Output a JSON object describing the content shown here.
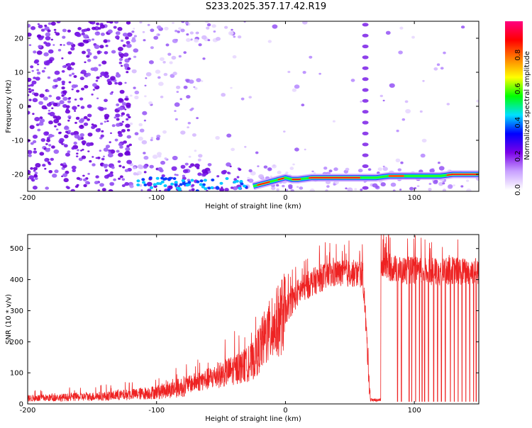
{
  "title": "S233.2025.357.17.42.R19",
  "colors": {
    "snr_line": "#ee2222",
    "spectrogram_low": "#7a00e8",
    "spectrogram_track": "#ff0000"
  },
  "chart_data": [
    {
      "type": "heatmap",
      "xlabel": "Height of straight line (km)",
      "ylabel": "Frequency (Hz)",
      "xlim": [
        -200,
        150
      ],
      "ylim": [
        -25,
        25
      ],
      "xticks": [
        "-200",
        "-100",
        "0",
        "100"
      ],
      "yticks": [
        "-20",
        "-10",
        "0",
        "10",
        "20"
      ],
      "colorbar": {
        "label": "Normalized spectral amplitude",
        "range": [
          0,
          1
        ],
        "ticks": [
          "0.0",
          "0.2",
          "0.4",
          "0.6",
          "0.8"
        ],
        "colormap": [
          "#ffffff",
          "#c8a0ff",
          "#7a00e8",
          "#0000ff",
          "#00e0ff",
          "#00ff00",
          "#ffff00",
          "#ff8000",
          "#ff0000",
          "#ff0080"
        ]
      },
      "signal_track": {
        "x": [
          -25,
          -20,
          -15,
          -10,
          -5,
          0,
          5,
          10,
          20,
          30,
          40,
          50,
          60,
          70,
          80,
          90,
          100,
          110,
          120,
          130,
          140,
          150
        ],
        "frequency": [
          -23.5,
          -23,
          -22.5,
          -22,
          -21.5,
          -21,
          -21.5,
          -21.5,
          -21,
          -21,
          -21,
          -21,
          -21,
          -21,
          -20.5,
          -20.5,
          -20.5,
          -20.5,
          -20.5,
          -20,
          -20,
          -20
        ]
      },
      "interruption_x": 62
    },
    {
      "type": "line",
      "xlabel": "Height of straight line (km)",
      "ylabel": "SNR (10 * v/v)",
      "xlim": [
        -200,
        150
      ],
      "ylim": [
        0,
        545
      ],
      "xticks": [
        "-200",
        "-100",
        "0",
        "100"
      ],
      "yticks": [
        "0",
        "100",
        "200",
        "300",
        "400",
        "500"
      ],
      "series": [
        {
          "x": [
            -200,
            -180,
            -160,
            -140,
            -120,
            -100,
            -90,
            -80,
            -70,
            -60,
            -50,
            -40,
            -30,
            -25,
            -20,
            -15,
            -10,
            -5,
            0,
            5,
            10,
            20,
            30,
            40,
            50,
            60,
            66,
            68,
            70,
            72,
            74,
            76,
            80,
            90,
            100,
            110,
            120,
            130,
            140,
            150
          ],
          "values": [
            18,
            20,
            22,
            25,
            30,
            38,
            45,
            55,
            70,
            80,
            95,
            110,
            125,
            140,
            180,
            220,
            240,
            270,
            300,
            330,
            360,
            390,
            410,
            420,
            420,
            418,
            10,
            10,
            10,
            420,
            440,
            450,
            440,
            430,
            430,
            425,
            425,
            430,
            425,
            430
          ]
        }
      ],
      "dropouts_x": [
        87,
        90,
        96,
        98,
        101,
        104,
        106,
        108,
        111,
        115,
        118,
        121,
        124,
        128,
        131,
        134,
        137,
        140,
        143,
        146,
        148
      ],
      "peak": {
        "x": 80,
        "y": 545
      }
    }
  ]
}
